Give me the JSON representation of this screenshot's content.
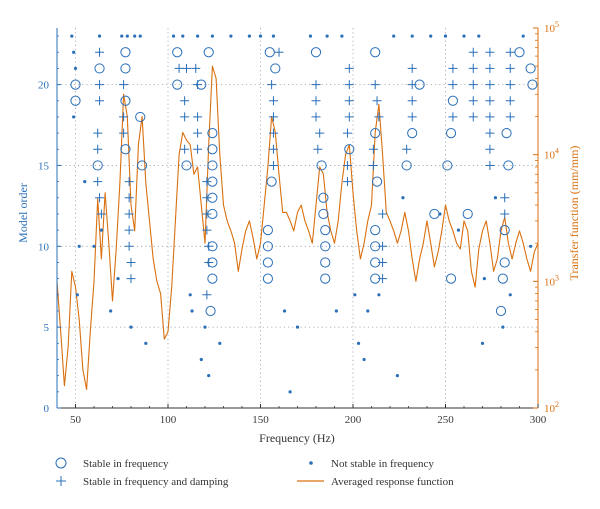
{
  "chart_data": {
    "type": "scatter",
    "xlabel": "Frequency (Hz)",
    "ylabel_left": "Model order",
    "ylabel_right": "Transfer function (mm/mm)",
    "xlim": [
      40,
      300
    ],
    "ylim_left": [
      0,
      23.5
    ],
    "ylim_right_log10": [
      2,
      5
    ],
    "x_ticks": [
      50,
      100,
      150,
      200,
      250,
      300
    ],
    "y_left_ticks": [
      0,
      5,
      10,
      15,
      20
    ],
    "y_right_ticks": [
      {
        "value": 100,
        "mant": "10",
        "exp": "2"
      },
      {
        "value": 1000,
        "mant": "10",
        "exp": "3"
      },
      {
        "value": 10000,
        "mant": "10",
        "exp": "4"
      },
      {
        "value": 100000,
        "mant": "10",
        "exp": "5"
      }
    ],
    "grid": true,
    "legend": [
      {
        "marker": "circle",
        "label": "Stable in frequency"
      },
      {
        "marker": "dot",
        "label": "Not stable in frequency"
      },
      {
        "marker": "plus",
        "label": "Stable in frequency and damping"
      },
      {
        "marker": "line",
        "label": "Averaged response function"
      }
    ],
    "colors": {
      "markers": "#2a6fb8",
      "line": "#d9700f",
      "axis_left": "#2a6fb8",
      "axis_right": "#d9700f"
    },
    "series_points": {
      "circles": [
        [
          50,
          20
        ],
        [
          50,
          19
        ],
        [
          63,
          21
        ],
        [
          62,
          15
        ],
        [
          77,
          22
        ],
        [
          77,
          21
        ],
        [
          77,
          19
        ],
        [
          77,
          16
        ],
        [
          85,
          18
        ],
        [
          86,
          15
        ],
        [
          105,
          22
        ],
        [
          105,
          20
        ],
        [
          110,
          15
        ],
        [
          118,
          20
        ],
        [
          122,
          22
        ],
        [
          124,
          8
        ],
        [
          123,
          6
        ],
        [
          124,
          17
        ],
        [
          124,
          16
        ],
        [
          124,
          15
        ],
        [
          124,
          14
        ],
        [
          124,
          13
        ],
        [
          124,
          12
        ],
        [
          124,
          10
        ],
        [
          124,
          9
        ],
        [
          155,
          22
        ],
        [
          158,
          21
        ],
        [
          156,
          14
        ],
        [
          154,
          11
        ],
        [
          154,
          10
        ],
        [
          154,
          9
        ],
        [
          154,
          8
        ],
        [
          180,
          22
        ],
        [
          183,
          15
        ],
        [
          184,
          13
        ],
        [
          184,
          12
        ],
        [
          185,
          11
        ],
        [
          185,
          10
        ],
        [
          185,
          9
        ],
        [
          185,
          8
        ],
        [
          198,
          16
        ],
        [
          212,
          22
        ],
        [
          212,
          17
        ],
        [
          213,
          14
        ],
        [
          212,
          11
        ],
        [
          212,
          10
        ],
        [
          212,
          9
        ],
        [
          212,
          8
        ],
        [
          229,
          15
        ],
        [
          232,
          17
        ],
        [
          236,
          20
        ],
        [
          244,
          12
        ],
        [
          254,
          19
        ],
        [
          251,
          15
        ],
        [
          253,
          8
        ],
        [
          253,
          17
        ],
        [
          262,
          12
        ],
        [
          280,
          6
        ],
        [
          281,
          8
        ],
        [
          282,
          11
        ],
        [
          282,
          9
        ],
        [
          283,
          17
        ],
        [
          284,
          15
        ],
        [
          290,
          22
        ],
        [
          296,
          21
        ],
        [
          297,
          20
        ]
      ],
      "pluses": [
        [
          63,
          22
        ],
        [
          63,
          20
        ],
        [
          63,
          19
        ],
        [
          62,
          17
        ],
        [
          62,
          16
        ],
        [
          62,
          14
        ],
        [
          63,
          13
        ],
        [
          64,
          12
        ],
        [
          76,
          20
        ],
        [
          76,
          18
        ],
        [
          76,
          17
        ],
        [
          79,
          14
        ],
        [
          79,
          13
        ],
        [
          79,
          12
        ],
        [
          79,
          11
        ],
        [
          79,
          10
        ],
        [
          80,
          9
        ],
        [
          80,
          8
        ],
        [
          110,
          21
        ],
        [
          106,
          21
        ],
        [
          109,
          19
        ],
        [
          109,
          18
        ],
        [
          109,
          16
        ],
        [
          115,
          21
        ],
        [
          116,
          20
        ],
        [
          116,
          18
        ],
        [
          116,
          17
        ],
        [
          116,
          16
        ],
        [
          121,
          14
        ],
        [
          121,
          13
        ],
        [
          121,
          12
        ],
        [
          121,
          11
        ],
        [
          122,
          10
        ],
        [
          122,
          9
        ],
        [
          121,
          7
        ],
        [
          160,
          22
        ],
        [
          156,
          20
        ],
        [
          157,
          19
        ],
        [
          157,
          18
        ],
        [
          157,
          17
        ],
        [
          157,
          16
        ],
        [
          157,
          15
        ],
        [
          180,
          20
        ],
        [
          180,
          19
        ],
        [
          180,
          18
        ],
        [
          182,
          17
        ],
        [
          181,
          16
        ],
        [
          198,
          21
        ],
        [
          198,
          20
        ],
        [
          198,
          19
        ],
        [
          198,
          18
        ],
        [
          197,
          17
        ],
        [
          197,
          15
        ],
        [
          197,
          14
        ],
        [
          212,
          20
        ],
        [
          213,
          19
        ],
        [
          214,
          18
        ],
        [
          211,
          16
        ],
        [
          211,
          15
        ],
        [
          216,
          12
        ],
        [
          216,
          10
        ],
        [
          216,
          9
        ],
        [
          216,
          8
        ],
        [
          232,
          21
        ],
        [
          232,
          20
        ],
        [
          232,
          19
        ],
        [
          232,
          18
        ],
        [
          229,
          16
        ],
        [
          254,
          21
        ],
        [
          254,
          20
        ],
        [
          254,
          18
        ],
        [
          265,
          22
        ],
        [
          265,
          21
        ],
        [
          265,
          20
        ],
        [
          265,
          19
        ],
        [
          265,
          18
        ],
        [
          274,
          22
        ],
        [
          274,
          21
        ],
        [
          274,
          20
        ],
        [
          274,
          19
        ],
        [
          274,
          18
        ],
        [
          274,
          17
        ],
        [
          274,
          16
        ],
        [
          274,
          15
        ],
        [
          282,
          13
        ],
        [
          282,
          12
        ],
        [
          285,
          22
        ],
        [
          285,
          21
        ],
        [
          285,
          20
        ],
        [
          285,
          19
        ],
        [
          285,
          18
        ]
      ],
      "dots": [
        [
          48,
          23
        ],
        [
          49,
          22
        ],
        [
          50,
          21
        ],
        [
          49,
          18
        ],
        [
          52,
          10
        ],
        [
          51,
          7
        ],
        [
          55,
          14
        ],
        [
          60,
          10
        ],
        [
          63,
          23
        ],
        [
          64,
          11
        ],
        [
          69,
          6
        ],
        [
          73,
          8
        ],
        [
          75,
          23
        ],
        [
          78,
          23
        ],
        [
          80,
          5
        ],
        [
          82,
          23
        ],
        [
          85,
          23
        ],
        [
          88,
          4
        ],
        [
          103,
          23
        ],
        [
          108,
          23
        ],
        [
          112,
          7
        ],
        [
          113,
          6
        ],
        [
          116,
          23
        ],
        [
          118,
          3
        ],
        [
          120,
          5
        ],
        [
          122,
          2
        ],
        [
          124,
          23
        ],
        [
          128,
          4
        ],
        [
          134,
          23
        ],
        [
          144,
          23
        ],
        [
          150,
          23
        ],
        [
          157,
          23
        ],
        [
          163,
          6
        ],
        [
          166,
          1
        ],
        [
          170,
          5
        ],
        [
          177,
          23
        ],
        [
          186,
          23
        ],
        [
          191,
          6
        ],
        [
          194,
          23
        ],
        [
          201,
          7
        ],
        [
          203,
          4
        ],
        [
          206,
          3
        ],
        [
          208,
          6
        ],
        [
          214,
          7
        ],
        [
          222,
          23
        ],
        [
          224,
          2
        ],
        [
          227,
          13
        ],
        [
          232,
          23
        ],
        [
          242,
          23
        ],
        [
          247,
          12
        ],
        [
          250,
          23
        ],
        [
          257,
          11
        ],
        [
          260,
          23
        ],
        [
          268,
          23
        ],
        [
          270,
          4
        ],
        [
          271,
          8
        ],
        [
          277,
          13
        ],
        [
          281,
          5
        ],
        [
          285,
          7
        ],
        [
          292,
          23
        ],
        [
          296,
          10
        ]
      ]
    },
    "line": {
      "x": [
        40,
        42,
        44,
        46,
        48,
        50,
        52,
        54,
        56,
        58,
        60,
        62,
        64,
        66,
        68,
        70,
        72,
        74,
        76,
        78,
        80,
        82,
        84,
        86,
        88,
        90,
        92,
        94,
        96,
        98,
        100,
        102,
        104,
        106,
        108,
        110,
        112,
        114,
        116,
        118,
        120,
        122,
        124,
        126,
        128,
        130,
        132,
        134,
        136,
        138,
        140,
        142,
        144,
        146,
        148,
        150,
        152,
        154,
        156,
        158,
        160,
        162,
        164,
        166,
        168,
        170,
        172,
        174,
        176,
        178,
        180,
        182,
        184,
        186,
        188,
        190,
        192,
        194,
        196,
        198,
        200,
        202,
        204,
        206,
        208,
        210,
        212,
        214,
        216,
        218,
        220,
        222,
        224,
        226,
        228,
        230,
        232,
        234,
        236,
        238,
        240,
        242,
        244,
        246,
        248,
        250,
        252,
        254,
        256,
        258,
        260,
        262,
        264,
        266,
        268,
        270,
        272,
        274,
        276,
        278,
        280,
        282,
        284,
        286,
        288,
        290,
        292,
        294,
        296,
        298,
        300
      ],
      "y": [
        1000,
        400,
        150,
        300,
        1200,
        900,
        500,
        200,
        140,
        400,
        1000,
        4500,
        1500,
        5000,
        2000,
        700,
        1800,
        6000,
        30000,
        20000,
        4000,
        2500,
        12000,
        20000,
        6000,
        3000,
        1500,
        1000,
        800,
        350,
        400,
        900,
        3000,
        10000,
        15000,
        13000,
        12000,
        7000,
        8000,
        4000,
        2000,
        12000,
        50000,
        40000,
        10000,
        4000,
        3000,
        2500,
        2000,
        1200,
        1800,
        2500,
        3000,
        2200,
        1500,
        2000,
        4000,
        8000,
        20000,
        15000,
        7000,
        3500,
        3500,
        3000,
        2500,
        3500,
        4000,
        3000,
        2500,
        2000,
        4000,
        8000,
        7000,
        3500,
        2500,
        2000,
        3000,
        6000,
        10000,
        12000,
        5000,
        2500,
        1500,
        2000,
        3000,
        4000,
        15000,
        25000,
        10000,
        3500,
        3000,
        2500,
        2000,
        2500,
        3500,
        2500,
        1500,
        1000,
        1500,
        2000,
        3000,
        2000,
        1300,
        1700,
        2500,
        4000,
        3000,
        2500,
        2000,
        1800,
        3000,
        2500,
        1200,
        900,
        1800,
        2500,
        3000,
        2000,
        1200,
        1500,
        2500,
        3200,
        2000,
        1500,
        2000,
        2500,
        2000,
        1500,
        1200,
        1700,
        2000
      ]
    }
  }
}
